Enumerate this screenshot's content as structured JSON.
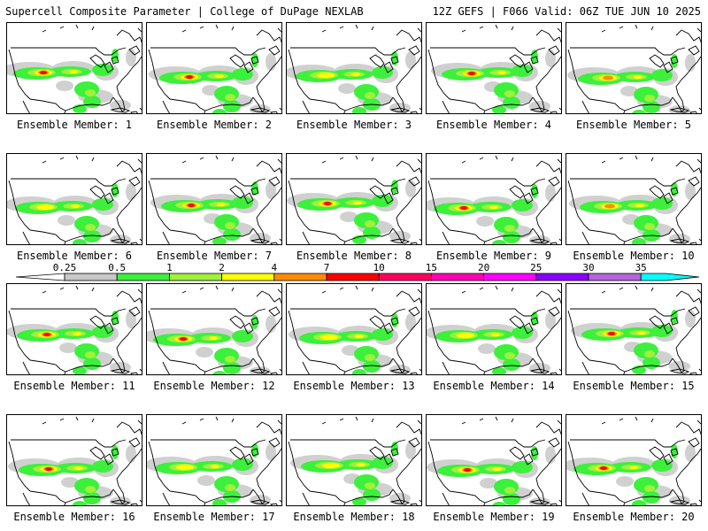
{
  "header": {
    "left": "Supercell Composite Parameter | College of DuPage NEXLAB",
    "right": "12Z GEFS | F066 Valid: 06Z TUE JUN 10 2025"
  },
  "legend": {
    "labels": [
      "0.25",
      "0.5",
      "1",
      "2",
      "4",
      "7",
      "10",
      "15",
      "20",
      "25",
      "30",
      "35"
    ],
    "colors": [
      "#c8c8c8",
      "#3cf03c",
      "#a0f03c",
      "#ffff00",
      "#ff8c00",
      "#ff0000",
      "#ff0060",
      "#ff00b4",
      "#ff00ff",
      "#8c00ff",
      "#b464dc",
      "#00ffff"
    ]
  },
  "members": [
    {
      "label": "Ensemble Member: 1",
      "max": "red"
    },
    {
      "label": "Ensemble Member: 2",
      "max": "red"
    },
    {
      "label": "Ensemble Member: 3",
      "max": "yellow"
    },
    {
      "label": "Ensemble Member: 4",
      "max": "red"
    },
    {
      "label": "Ensemble Member: 5",
      "max": "orange"
    },
    {
      "label": "Ensemble Member: 6",
      "max": "yellow"
    },
    {
      "label": "Ensemble Member: 7",
      "max": "red"
    },
    {
      "label": "Ensemble Member: 8",
      "max": "red"
    },
    {
      "label": "Ensemble Member: 9",
      "max": "red"
    },
    {
      "label": "Ensemble Member: 10",
      "max": "orange"
    },
    {
      "label": "Ensemble Member: 11",
      "max": "red"
    },
    {
      "label": "Ensemble Member: 12",
      "max": "red"
    },
    {
      "label": "Ensemble Member: 13",
      "max": "yellow"
    },
    {
      "label": "Ensemble Member: 14",
      "max": "yellow"
    },
    {
      "label": "Ensemble Member: 15",
      "max": "red"
    },
    {
      "label": "Ensemble Member: 16",
      "max": "red"
    },
    {
      "label": "Ensemble Member: 17",
      "max": "yellow"
    },
    {
      "label": "Ensemble Member: 18",
      "max": "yellow"
    },
    {
      "label": "Ensemble Member: 19",
      "max": "red"
    },
    {
      "label": "Ensemble Member: 20",
      "max": "red"
    }
  ]
}
